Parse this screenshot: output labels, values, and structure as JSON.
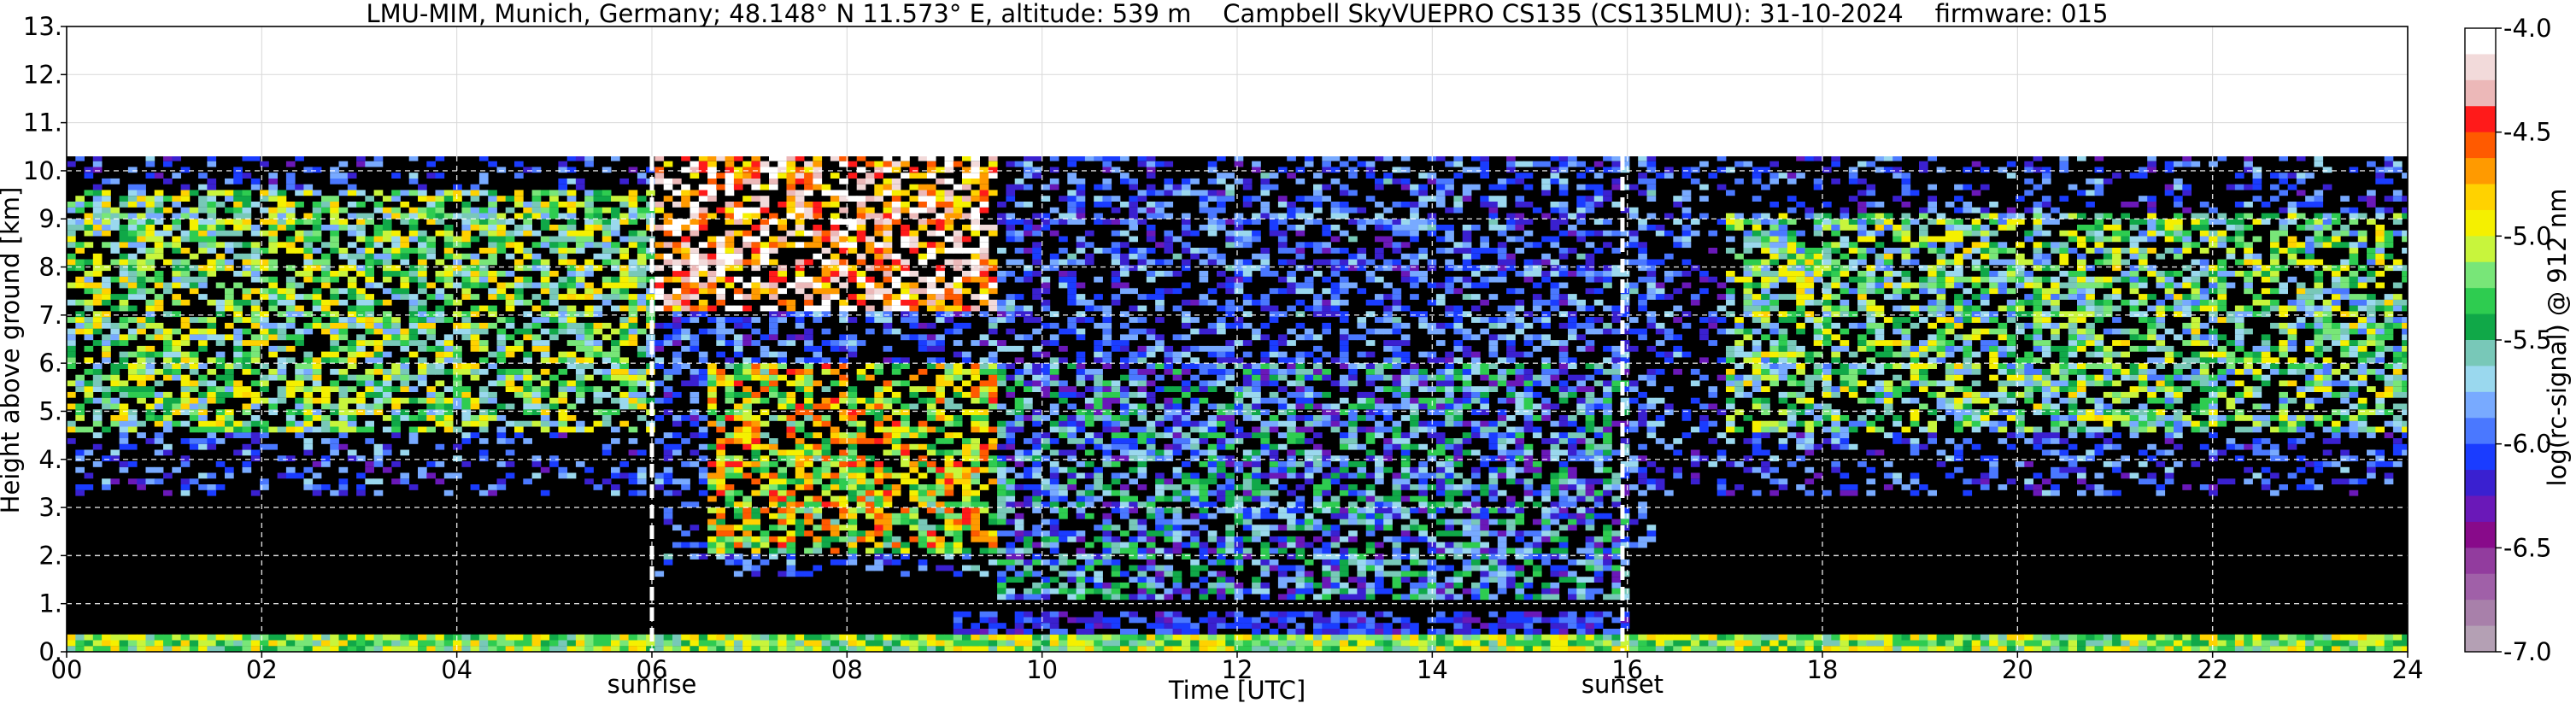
{
  "chart_data": {
    "type": "heatmap",
    "title": "LMU-MIM, Munich, Germany; 48.148° N 11.573° E, altitude: 539 m    Campbell SkyVUEPRO CS135 (CS135LMU): 31-10-2024    firmware: 015",
    "xlabel": "Time [UTC]",
    "ylabel": "Height above ground [km]",
    "xlim": [
      0,
      24
    ],
    "ylim": [
      0,
      13
    ],
    "x_ticks": [
      0,
      2,
      4,
      6,
      8,
      10,
      12,
      14,
      16,
      18,
      20,
      22,
      24
    ],
    "x_tick_labels": [
      "00",
      "02",
      "04",
      "06",
      "08",
      "10",
      "12",
      "14",
      "16",
      "18",
      "20",
      "22",
      "24"
    ],
    "y_ticks": [
      0,
      1,
      2,
      3,
      4,
      5,
      6,
      7,
      8,
      9,
      10,
      11,
      12,
      13
    ],
    "y_tick_labels": [
      "0.",
      "1.",
      "2.",
      "3.",
      "4.",
      "5.",
      "6.",
      "7.",
      "8.",
      "9.",
      "10.",
      "11.",
      "12.",
      "13."
    ],
    "grid": true,
    "data_top_km": 10.3,
    "events": [
      {
        "label": "sunrise",
        "time": 6.0
      },
      {
        "label": "sunset",
        "time": 15.95
      }
    ],
    "colorbar": {
      "label": "log(rc-signal) @ 912 nm",
      "min": -7.0,
      "max": -4.0,
      "ticks": [
        -4.0,
        -4.5,
        -5.0,
        -5.5,
        -6.0,
        -6.5,
        -7.0
      ],
      "tick_labels": [
        "-4.0",
        "-4.5",
        "-5.0",
        "-5.5",
        "-6.0",
        "-6.5",
        "-7.0"
      ],
      "colors_top_to_bottom": [
        "#ffffff",
        "#f2dada",
        "#ecb8b8",
        "#ff1a1a",
        "#ff5a00",
        "#ff9a00",
        "#ffd200",
        "#f5f000",
        "#c8f53c",
        "#78e678",
        "#2ecc50",
        "#10a848",
        "#78c8b8",
        "#9ad8ee",
        "#78aaff",
        "#4a78ff",
        "#1a3cff",
        "#3a20d0",
        "#6a18b8",
        "#880a8a",
        "#923c9e",
        "#a060a8",
        "#a880aa",
        "#b4a0b4"
      ]
    },
    "backscatter_regions": [
      {
        "t": [
          0.0,
          6.0
        ],
        "h": [
          4.5,
          9.5
        ],
        "level": -5.3
      },
      {
        "t": [
          6.0,
          9.5
        ],
        "h": [
          7.0,
          10.2
        ],
        "level": -4.4
      },
      {
        "t": [
          6.5,
          9.5
        ],
        "h": [
          2.0,
          6.0
        ],
        "level": -5.0
      },
      {
        "t": [
          9.5,
          16.0
        ],
        "h": [
          1.0,
          6.0
        ],
        "level": -5.8
      },
      {
        "t": [
          17.0,
          24.0
        ],
        "h": [
          4.5,
          9.0
        ],
        "level": -5.4
      },
      {
        "t": [
          0.0,
          24.0
        ],
        "h": [
          0.0,
          0.3
        ],
        "level": -5.2
      }
    ]
  }
}
